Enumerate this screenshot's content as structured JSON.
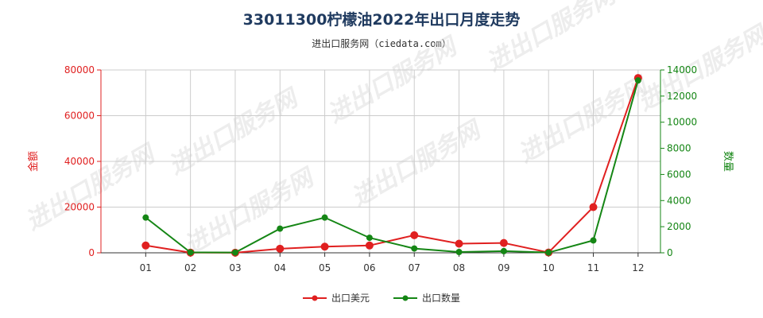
{
  "title": "33011300柠檬油2022年出口月度走势",
  "subtitle": "进出口服务网（ciedata.com）",
  "watermark": "进出口服务网",
  "colors": {
    "series1": "#e02020",
    "series2": "#158615",
    "grid": "#cccccc"
  },
  "chart_data": {
    "type": "line",
    "categories": [
      "01",
      "02",
      "03",
      "04",
      "05",
      "06",
      "07",
      "08",
      "09",
      "10",
      "11",
      "12"
    ],
    "y_left": {
      "label": "金额",
      "min": 0,
      "max": 80000,
      "ticks": [
        0,
        20000,
        40000,
        60000,
        80000
      ]
    },
    "y_right": {
      "label": "数量",
      "min": 0,
      "max": 14000,
      "ticks": [
        0,
        2000,
        4000,
        6000,
        8000,
        10000,
        12000,
        14000
      ]
    },
    "series": [
      {
        "name": "出口美元",
        "axis": "left",
        "color": "#e02020",
        "values": [
          3200,
          100,
          50,
          1800,
          2700,
          3200,
          7700,
          4000,
          4300,
          150,
          20000,
          76500
        ]
      },
      {
        "name": "出口数量",
        "axis": "right",
        "color": "#158615",
        "values": [
          2700,
          30,
          20,
          1850,
          2700,
          1150,
          330,
          60,
          130,
          20,
          950,
          13200
        ]
      }
    ],
    "grid": true,
    "legend_position": "bottom"
  }
}
